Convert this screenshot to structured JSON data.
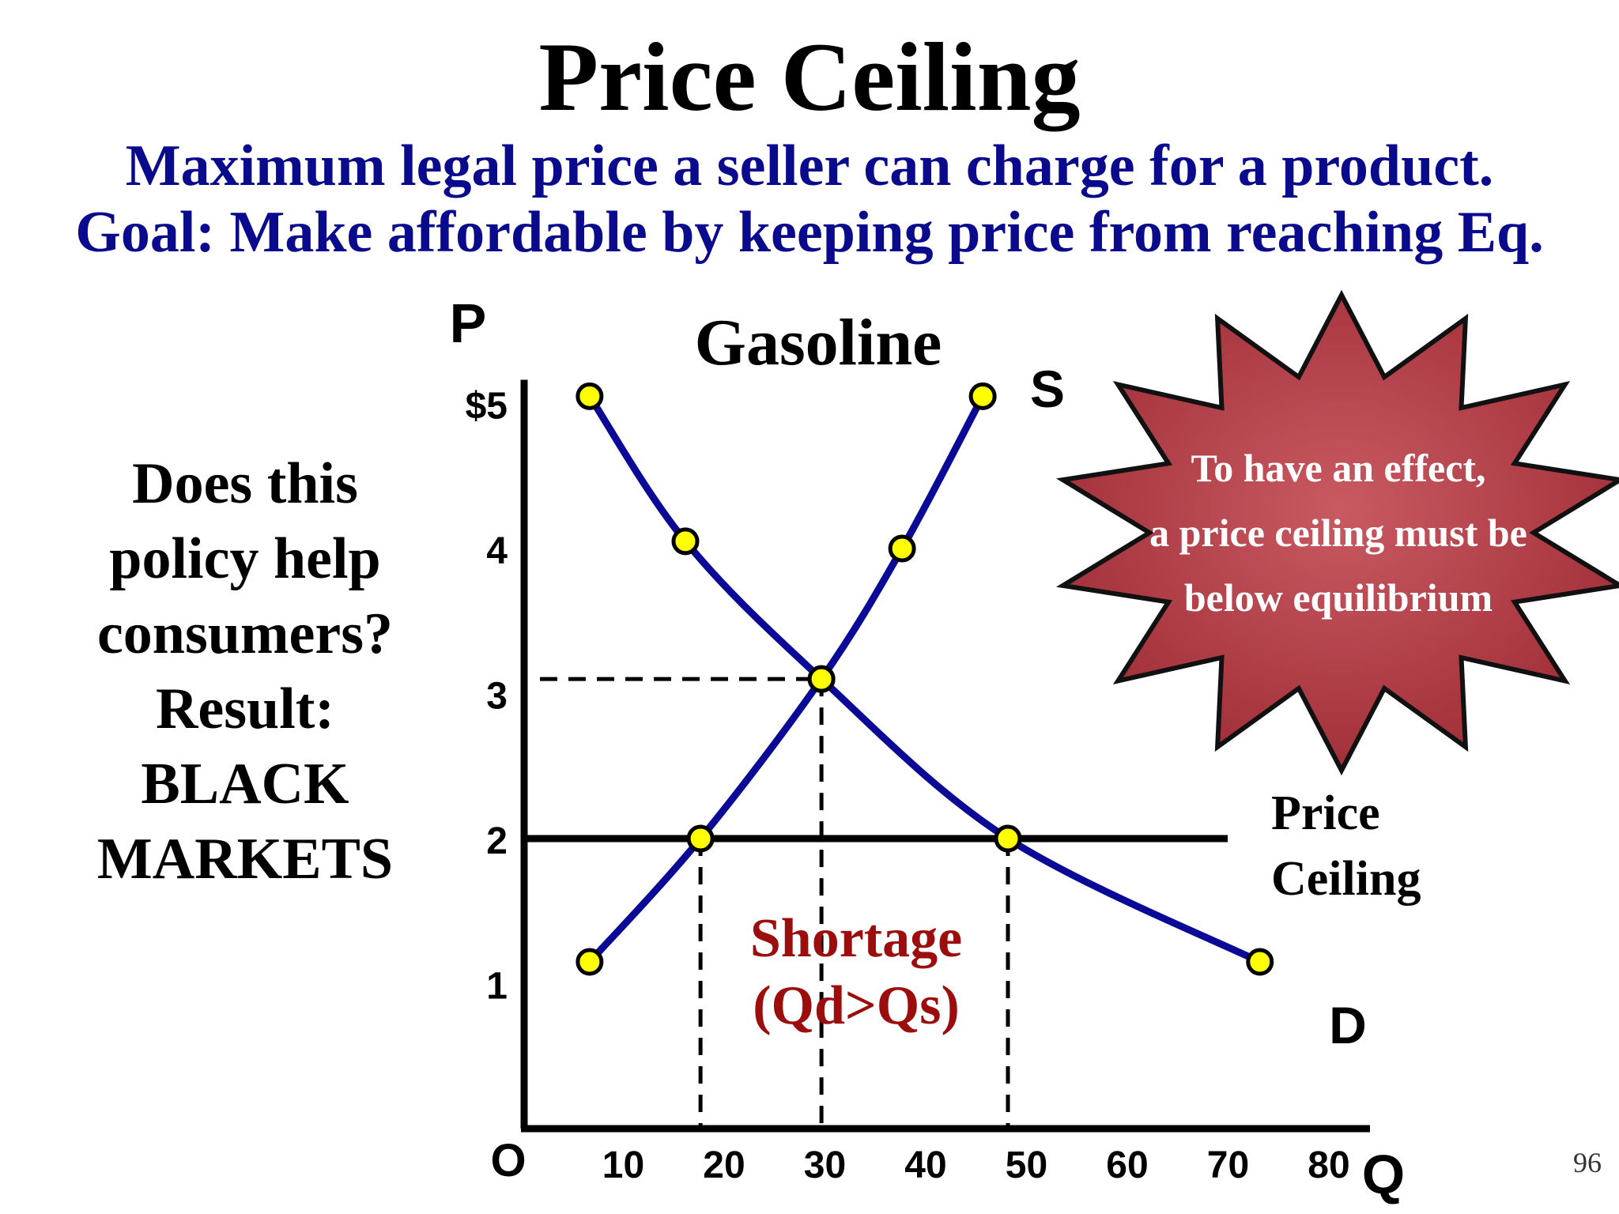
{
  "slide": {
    "title": "Price Ceiling",
    "subtitle_line1": "Maximum legal price a seller can charge for a product.",
    "subtitle_line2": "Goal: Make affordable by keeping price from reaching Eq.",
    "question_lines": [
      "Does this",
      "policy help",
      "consumers?",
      "Result:",
      "BLACK",
      "MARKETS"
    ],
    "page_number": "96",
    "callout_lines": [
      "To have an effect,",
      "a price ceiling must be",
      "below equilibrium"
    ],
    "colors": {
      "subtitle": "#0a0a8c",
      "curve": "#0a0a96",
      "point_fill": "#ffff00",
      "shortage_text": "#9c0e0e",
      "starburst": "#b5474f"
    }
  },
  "chart_data": {
    "type": "line",
    "title": "Gasoline",
    "xlabel": "Q",
    "ylabel": "P",
    "origin_label": "O",
    "xlim": [
      0,
      80
    ],
    "ylim": [
      0,
      5
    ],
    "x_ticks": [
      "10",
      "20",
      "30",
      "40",
      "50",
      "60",
      "70",
      "80"
    ],
    "y_ticks": [
      "1",
      "2",
      "3",
      "4",
      "$5"
    ],
    "series": [
      {
        "name": "S",
        "points": [
          [
            6.5,
            1.15
          ],
          [
            17.5,
            2
          ],
          [
            29.5,
            3.1
          ],
          [
            37.5,
            4
          ],
          [
            45.5,
            5.05
          ]
        ]
      },
      {
        "name": "D",
        "points": [
          [
            6.5,
            5.05
          ],
          [
            16,
            4.05
          ],
          [
            29.5,
            3.1
          ],
          [
            48,
            2
          ],
          [
            73,
            1.15
          ]
        ]
      }
    ],
    "price_ceiling": {
      "price": 2,
      "label_line1": "Price",
      "label_line2": "Ceiling"
    },
    "equilibrium": {
      "price": 3.1,
      "quantity": 29.5
    },
    "quantity_supplied_at_ceiling": 17.5,
    "quantity_demanded_at_ceiling": 48,
    "shortage_label_line1": "Shortage",
    "shortage_label_line2": "(Qd>Qs)"
  }
}
